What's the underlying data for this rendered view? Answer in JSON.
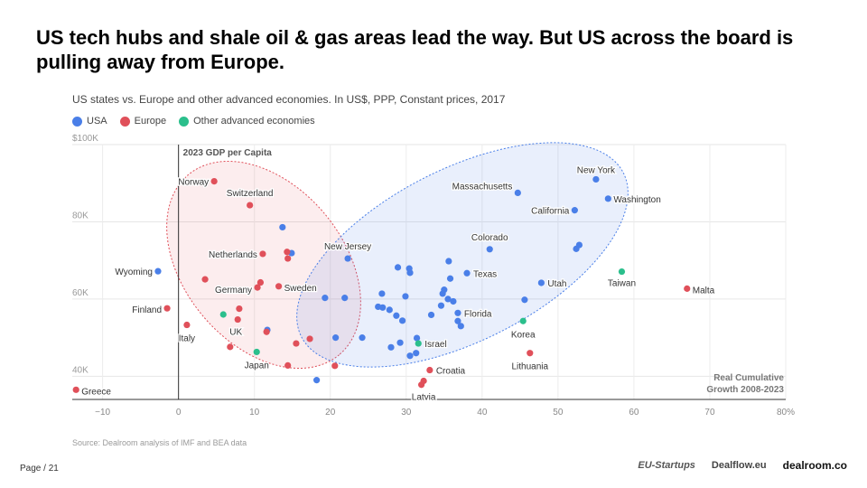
{
  "headline": "US tech hubs and shale oil & gas areas lead the way. But US across the board is pulling away from Europe.",
  "colors": {
    "usa": "#4a7fe8",
    "europe": "#e0505a",
    "other": "#2bbf8c"
  },
  "chart_data": {
    "type": "scatter",
    "title": "US states vs. Europe and other advanced economies. In US$, PPP, Constant prices, 2017",
    "ylabel": "2023 GDP per Capita",
    "xlabel": "Real Cumulative Growth 2008-2023",
    "xlabel_lines": [
      "Real Cumulative",
      "Growth 2008-2023"
    ],
    "xlim": [
      -14,
      80
    ],
    "ylim": [
      34000,
      100000
    ],
    "x_ticks": [
      -10,
      0,
      10,
      20,
      30,
      40,
      50,
      60,
      70,
      80
    ],
    "x_tick_labels": [
      "−10",
      "0",
      "10",
      "20",
      "30",
      "40",
      "50",
      "60",
      "70",
      "80%"
    ],
    "y_ticks": [
      40000,
      60000,
      80000,
      100000
    ],
    "y_tick_labels": [
      "40K",
      "60K",
      "80K",
      "$100K"
    ],
    "legend": [
      "USA",
      "Europe",
      "Other advanced economies"
    ],
    "series": [
      {
        "name": "USA",
        "color_key": "usa",
        "points": [
          {
            "label": "New York",
            "x": 55,
            "y": 91000
          },
          {
            "label": "Washington",
            "x": 56.6,
            "y": 86000
          },
          {
            "label": "Massachusetts",
            "x": 44.7,
            "y": 87500
          },
          {
            "label": "California",
            "x": 52.2,
            "y": 83000
          },
          {
            "label": "Colorado",
            "x": 41,
            "y": 72900
          },
          {
            "label": "Texas",
            "x": 38,
            "y": 66700
          },
          {
            "label": "Utah",
            "x": 47.8,
            "y": 64200
          },
          {
            "label": "Florida",
            "x": 36.8,
            "y": 56400
          },
          {
            "label": "New Jersey",
            "x": 22.3,
            "y": 70500
          },
          {
            "label": "Wyoming",
            "x": -2.7,
            "y": 67200
          },
          {
            "label": "",
            "x": 52.4,
            "y": 73000
          },
          {
            "label": "",
            "x": 52.8,
            "y": 74000
          },
          {
            "label": "",
            "x": 45.6,
            "y": 59800
          },
          {
            "label": "",
            "x": 13.7,
            "y": 78600
          },
          {
            "label": "",
            "x": 14.9,
            "y": 71900
          },
          {
            "label": "",
            "x": 11.7,
            "y": 52000
          },
          {
            "label": "",
            "x": 19.3,
            "y": 60300
          },
          {
            "label": "",
            "x": 21.9,
            "y": 60300
          },
          {
            "label": "",
            "x": 20.7,
            "y": 50000
          },
          {
            "label": "",
            "x": 18.2,
            "y": 39000
          },
          {
            "label": "",
            "x": 24.2,
            "y": 50000
          },
          {
            "label": "",
            "x": 26.3,
            "y": 58000
          },
          {
            "label": "",
            "x": 26.8,
            "y": 61400
          },
          {
            "label": "",
            "x": 26.9,
            "y": 57800
          },
          {
            "label": "",
            "x": 27.8,
            "y": 57200
          },
          {
            "label": "",
            "x": 28.7,
            "y": 55700
          },
          {
            "label": "",
            "x": 28.9,
            "y": 68200
          },
          {
            "label": "",
            "x": 29.5,
            "y": 54400
          },
          {
            "label": "",
            "x": 29.9,
            "y": 60700
          },
          {
            "label": "",
            "x": 30.4,
            "y": 67900
          },
          {
            "label": "",
            "x": 30.5,
            "y": 66800
          },
          {
            "label": "",
            "x": 29.2,
            "y": 48700
          },
          {
            "label": "",
            "x": 28,
            "y": 47500
          },
          {
            "label": "",
            "x": 30.5,
            "y": 45300
          },
          {
            "label": "",
            "x": 31.3,
            "y": 46000
          },
          {
            "label": "",
            "x": 31.4,
            "y": 49900
          },
          {
            "label": "",
            "x": 33.3,
            "y": 55900
          },
          {
            "label": "",
            "x": 34.6,
            "y": 58300
          },
          {
            "label": "",
            "x": 34.8,
            "y": 61400
          },
          {
            "label": "",
            "x": 35,
            "y": 62400
          },
          {
            "label": "",
            "x": 35.5,
            "y": 60000
          },
          {
            "label": "",
            "x": 35.6,
            "y": 69800
          },
          {
            "label": "",
            "x": 35.8,
            "y": 65300
          },
          {
            "label": "",
            "x": 36.2,
            "y": 59400
          },
          {
            "label": "",
            "x": 36.8,
            "y": 54300
          },
          {
            "label": "",
            "x": 37.2,
            "y": 53000
          }
        ]
      },
      {
        "name": "Europe",
        "color_key": "europe",
        "points": [
          {
            "label": "Norway",
            "x": 4.7,
            "y": 90500
          },
          {
            "label": "Switzerland",
            "x": 9.4,
            "y": 84300
          },
          {
            "label": "Netherlands",
            "x": 11.1,
            "y": 71700
          },
          {
            "label": "Germany",
            "x": 10.4,
            "y": 63000
          },
          {
            "label": "Sweden",
            "x": 13.2,
            "y": 63300
          },
          {
            "label": "Finland",
            "x": -1.5,
            "y": 57600
          },
          {
            "label": "Italy",
            "x": 1.1,
            "y": 53300
          },
          {
            "label": "UK",
            "x": 7.8,
            "y": 54700
          },
          {
            "label": "Malta",
            "x": 67,
            "y": 62700
          },
          {
            "label": "Lithuania",
            "x": 46.3,
            "y": 46000
          },
          {
            "label": "Croatia",
            "x": 33.1,
            "y": 41600
          },
          {
            "label": "Latvia",
            "x": 32.3,
            "y": 38800
          },
          {
            "label": "Greece",
            "x": -13.5,
            "y": 36500
          },
          {
            "label": "",
            "x": 3.5,
            "y": 65100
          },
          {
            "label": "",
            "x": 10.8,
            "y": 64300
          },
          {
            "label": "",
            "x": 8,
            "y": 57500
          },
          {
            "label": "",
            "x": 14.3,
            "y": 72200
          },
          {
            "label": "",
            "x": 14.4,
            "y": 70500
          },
          {
            "label": "",
            "x": 11.6,
            "y": 51500
          },
          {
            "label": "",
            "x": 6.8,
            "y": 47600
          },
          {
            "label": "",
            "x": 15.5,
            "y": 48500
          },
          {
            "label": "",
            "x": 17.3,
            "y": 49700
          },
          {
            "label": "",
            "x": 14.4,
            "y": 42800
          },
          {
            "label": "",
            "x": 20.6,
            "y": 42700
          },
          {
            "label": "",
            "x": 32,
            "y": 37800
          }
        ]
      },
      {
        "name": "Other advanced economies",
        "color_key": "other",
        "points": [
          {
            "label": "Taiwan",
            "x": 58.4,
            "y": 67100
          },
          {
            "label": "Korea",
            "x": 45.4,
            "y": 54300
          },
          {
            "label": "Israel",
            "x": 31.6,
            "y": 48500
          },
          {
            "label": "Japan",
            "x": 10.3,
            "y": 46300
          },
          {
            "label": "",
            "x": 5.9,
            "y": 56000
          }
        ]
      }
    ],
    "clusters": [
      {
        "name": "Europe cluster",
        "color_key": "europe"
      },
      {
        "name": "USA cluster",
        "color_key": "usa"
      }
    ]
  },
  "source": "Source: Dealroom analysis of IMF and BEA data",
  "page": "Page / 21",
  "logos": [
    "EU-Startups",
    "Dealflow.eu",
    "dealroom.co"
  ]
}
